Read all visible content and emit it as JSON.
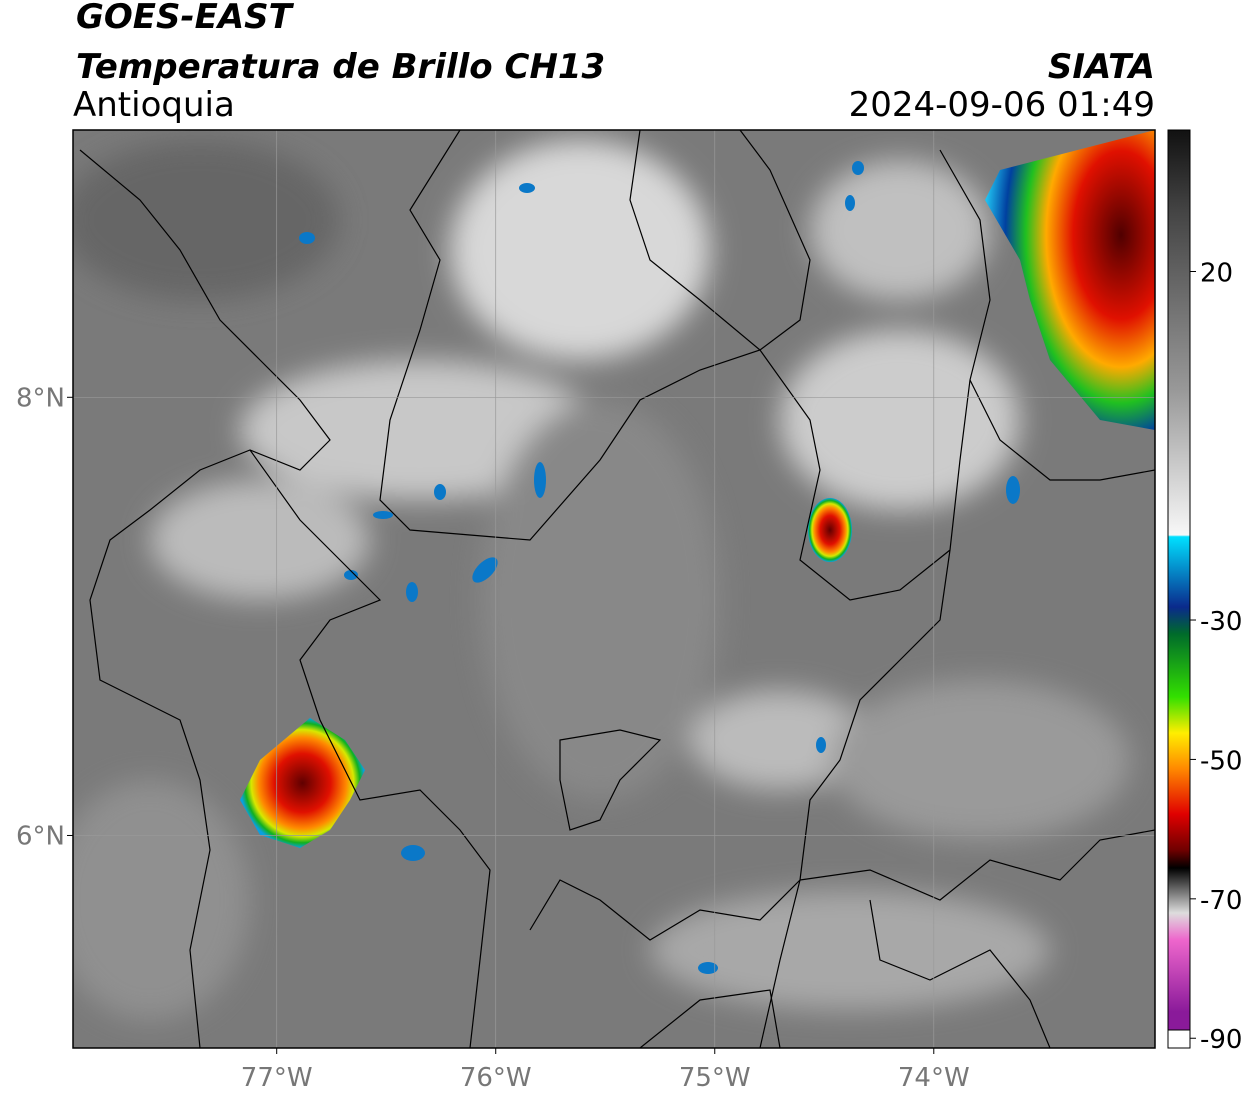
{
  "header": {
    "title": "GOES-EAST",
    "subtitle": "Temperatura de Brillo CH13",
    "region": "Antioquia",
    "agency": "SIATA",
    "datetime": "2024-09-06 01:49"
  },
  "map": {
    "xlim": [
      -77.93,
      -72.99
    ],
    "ylim": [
      5.03,
      9.22
    ],
    "xticks": [
      {
        "value": -77,
        "label": "77°W"
      },
      {
        "value": -76,
        "label": "76°W"
      },
      {
        "value": -75,
        "label": "75°W"
      },
      {
        "value": -74,
        "label": "74°W"
      }
    ],
    "yticks": [
      {
        "value": 8,
        "label": "8°N"
      },
      {
        "value": 6,
        "label": "6°N"
      }
    ],
    "grid": true
  },
  "colorbar": {
    "lim": [
      -91.4,
      40.3
    ],
    "ticks": [
      20,
      -30,
      -50,
      -70,
      -90
    ]
  }
}
